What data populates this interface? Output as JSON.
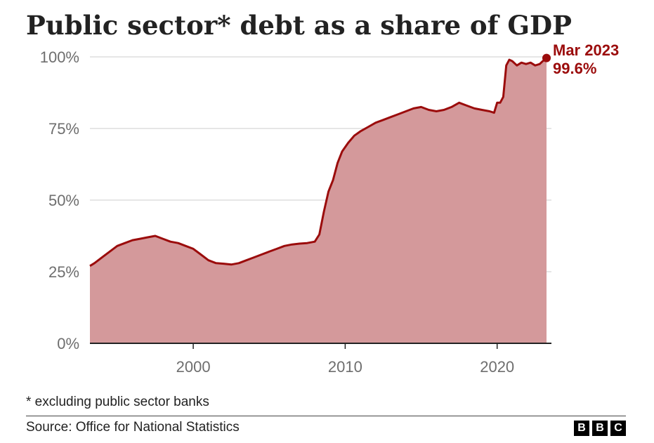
{
  "header": {
    "title": "Public sector* debt as a share of GDP"
  },
  "footer": {
    "footnote": "* excluding public sector banks",
    "source": "Source: Office for National Statistics",
    "logo_letters": [
      "B",
      "B",
      "C"
    ]
  },
  "colors": {
    "line": "#9b0c0c",
    "area": "#d4999b",
    "grid": "#cccccc",
    "tick_text": "#6e6e6e",
    "annotation": "#9b0c0c"
  },
  "chart_data": {
    "type": "area",
    "title": "Public sector* debt as a share of GDP",
    "xlabel": "",
    "ylabel": "",
    "xlim": [
      1993.2,
      2023.25
    ],
    "ylim": [
      0,
      100
    ],
    "x_ticks": [
      2000,
      2010,
      2020
    ],
    "y_ticks": [
      0,
      25,
      50,
      75,
      100
    ],
    "y_tick_labels": [
      "0%",
      "25%",
      "50%",
      "75%",
      "100%"
    ],
    "grid": "horizontal",
    "legend": "none",
    "series": [
      {
        "x": [
          1993.2,
          1993.5,
          1994.0,
          1994.5,
          1995.0,
          1995.5,
          1996.0,
          1996.5,
          1997.0,
          1997.5,
          1998.0,
          1998.5,
          1999.0,
          1999.5,
          2000.0,
          2000.5,
          2001.0,
          2001.5,
          2002.0,
          2002.5,
          2003.0,
          2003.5,
          2004.0,
          2004.5,
          2005.0,
          2005.5,
          2006.0,
          2006.5,
          2007.0,
          2007.5,
          2008.0,
          2008.3,
          2008.6,
          2008.9,
          2009.2,
          2009.5,
          2009.8,
          2010.2,
          2010.6,
          2011.0,
          2011.5,
          2012.0,
          2012.5,
          2013.0,
          2013.5,
          2014.0,
          2014.5,
          2015.0,
          2015.5,
          2016.0,
          2016.5,
          2017.0,
          2017.5,
          2018.0,
          2018.5,
          2019.0,
          2019.5,
          2019.8,
          2020.0,
          2020.2,
          2020.4,
          2020.6,
          2020.8,
          2021.0,
          2021.3,
          2021.6,
          2021.9,
          2022.2,
          2022.5,
          2022.8,
          2023.0,
          2023.25
        ],
        "values": [
          27,
          28,
          30,
          32,
          34,
          35,
          36,
          36.5,
          37,
          37.5,
          36.5,
          35.5,
          35,
          34,
          33,
          31,
          29,
          28,
          27.8,
          27.5,
          28,
          29,
          30,
          31,
          32,
          33,
          34,
          34.5,
          34.8,
          35,
          35.5,
          38,
          46,
          53,
          57,
          63,
          67,
          70,
          72.5,
          74,
          75.5,
          77,
          78,
          79,
          80,
          81,
          82,
          82.5,
          81.5,
          81,
          81.5,
          82.5,
          84,
          83,
          82,
          81.5,
          81,
          80.5,
          84,
          84,
          86,
          97,
          99,
          98.5,
          97,
          98,
          97.5,
          98,
          97,
          97.5,
          98.5,
          99.6
        ]
      }
    ],
    "annotation": {
      "label": "Mar 2023",
      "value_label": "99.6%",
      "x": 2023.25,
      "y": 99.6
    }
  }
}
